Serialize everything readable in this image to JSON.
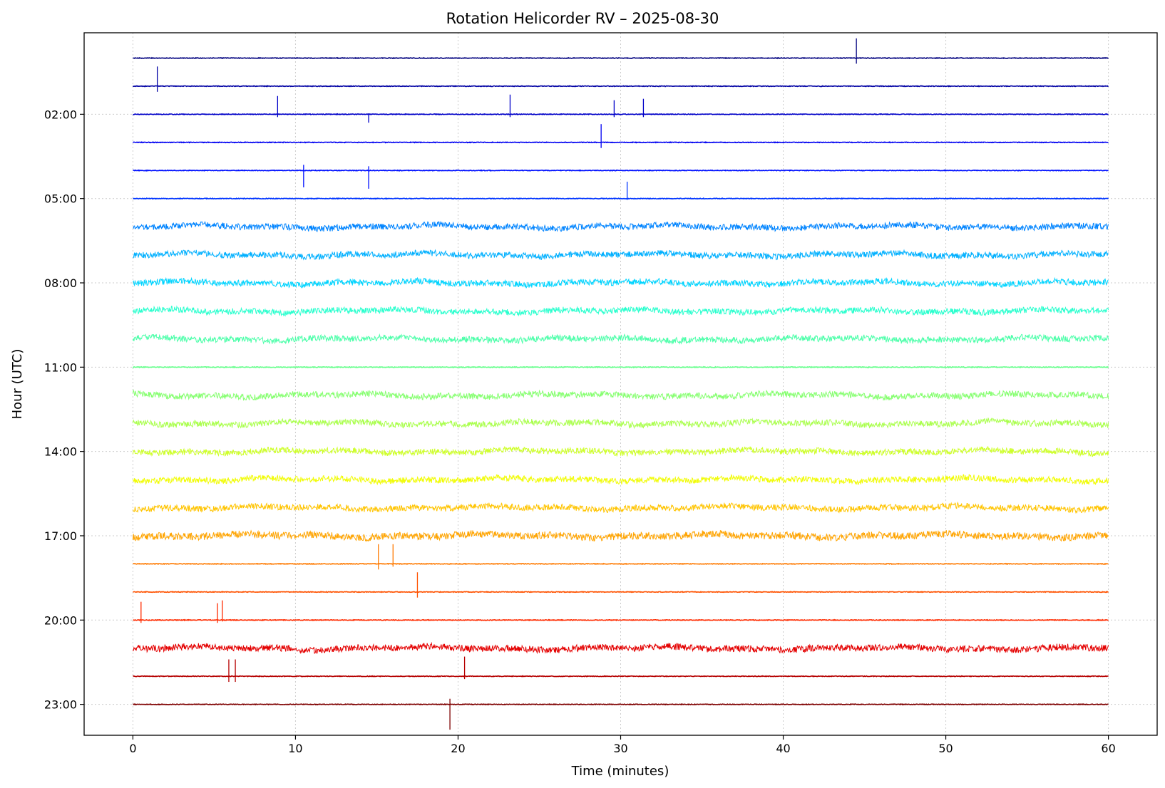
{
  "chart_data": {
    "type": "line",
    "title": "Rotation Helicorder RV – 2025-08-30",
    "xlabel": "Time (minutes)",
    "ylabel": "Hour (UTC)",
    "xlim": [
      -3,
      63
    ],
    "ylim": [
      24.1,
      -0.9
    ],
    "x_ticks": [
      0,
      10,
      20,
      30,
      40,
      50,
      60
    ],
    "x_tick_labels": [
      "0",
      "10",
      "20",
      "30",
      "40",
      "50",
      "60"
    ],
    "y_ticks": [
      2,
      5,
      8,
      11,
      14,
      17,
      20,
      23
    ],
    "y_tick_labels": [
      "02:00",
      "05:00",
      "08:00",
      "11:00",
      "14:00",
      "17:00",
      "20:00",
      "23:00"
    ],
    "grid": true,
    "colormap": "jet",
    "series": [
      {
        "hour": 0,
        "color": "#00007f",
        "noise": 0.012,
        "spikes": [
          {
            "t": 44.5,
            "up": 0.7,
            "down": 0.2
          }
        ]
      },
      {
        "hour": 1,
        "color": "#0000a4",
        "noise": 0.012,
        "spikes": [
          {
            "t": 1.5,
            "up": 0.7,
            "down": 0.2
          }
        ]
      },
      {
        "hour": 2,
        "color": "#0000c8",
        "noise": 0.012,
        "spikes": [
          {
            "t": 8.9,
            "up": 0.65,
            "down": 0.1
          },
          {
            "t": 14.5,
            "up": 0.0,
            "down": 0.3
          },
          {
            "t": 23.2,
            "up": 0.7,
            "down": 0.1
          },
          {
            "t": 29.6,
            "up": 0.5,
            "down": 0.1
          },
          {
            "t": 31.4,
            "up": 0.55,
            "down": 0.1
          }
        ]
      },
      {
        "hour": 3,
        "color": "#0000f1",
        "noise": 0.012,
        "spikes": [
          {
            "t": 28.8,
            "up": 0.65,
            "down": 0.2
          }
        ]
      },
      {
        "hour": 4,
        "color": "#0010ff",
        "noise": 0.012,
        "spikes": [
          {
            "t": 10.5,
            "up": 0.2,
            "down": 0.6
          },
          {
            "t": 14.5,
            "up": 0.15,
            "down": 0.65
          }
        ]
      },
      {
        "hour": 5,
        "color": "#0034ff",
        "noise": 0.012,
        "spikes": [
          {
            "t": 30.4,
            "up": 0.6,
            "down": 0.05
          }
        ]
      },
      {
        "hour": 6,
        "color": "#0084ff",
        "noise": 0.11,
        "spikes": []
      },
      {
        "hour": 7,
        "color": "#00b0ff",
        "noise": 0.11,
        "spikes": []
      },
      {
        "hour": 8,
        "color": "#00d4ff",
        "noise": 0.11,
        "spikes": []
      },
      {
        "hour": 9,
        "color": "#29ffce",
        "noise": 0.11,
        "spikes": []
      },
      {
        "hour": 10,
        "color": "#4dffaa",
        "noise": 0.11,
        "spikes": []
      },
      {
        "hour": 11,
        "color": "#69ff8e",
        "noise": 0.014,
        "spikes": []
      },
      {
        "hour": 12,
        "color": "#86ff70",
        "noise": 0.11,
        "spikes": []
      },
      {
        "hour": 13,
        "color": "#aaff4d",
        "noise": 0.11,
        "spikes": []
      },
      {
        "hour": 14,
        "color": "#ceff29",
        "noise": 0.11,
        "spikes": []
      },
      {
        "hour": 15,
        "color": "#f1fc06",
        "noise": 0.11,
        "spikes": []
      },
      {
        "hour": 16,
        "color": "#ffc400",
        "noise": 0.11,
        "spikes": []
      },
      {
        "hour": 17,
        "color": "#ffa400",
        "noise": 0.13,
        "spikes": []
      },
      {
        "hour": 18,
        "color": "#ff7a00",
        "noise": 0.012,
        "spikes": [
          {
            "t": 15.1,
            "up": 0.7,
            "down": 0.2
          },
          {
            "t": 16.0,
            "up": 0.7,
            "down": 0.1
          }
        ]
      },
      {
        "hour": 19,
        "color": "#ff5200",
        "noise": 0.012,
        "spikes": [
          {
            "t": 17.5,
            "up": 0.7,
            "down": 0.2
          }
        ]
      },
      {
        "hour": 20,
        "color": "#ff2b00",
        "noise": 0.012,
        "spikes": [
          {
            "t": 0.5,
            "up": 0.65,
            "down": 0.1
          },
          {
            "t": 5.2,
            "up": 0.6,
            "down": 0.1
          },
          {
            "t": 5.5,
            "up": 0.7,
            "down": 0.05
          }
        ]
      },
      {
        "hour": 21,
        "color": "#e40000",
        "noise": 0.12,
        "spikes": []
      },
      {
        "hour": 22,
        "color": "#b60000",
        "noise": 0.012,
        "spikes": [
          {
            "t": 5.9,
            "up": 0.6,
            "down": 0.2
          },
          {
            "t": 6.3,
            "up": 0.6,
            "down": 0.2
          },
          {
            "t": 20.4,
            "up": 0.7,
            "down": 0.1
          }
        ]
      },
      {
        "hour": 23,
        "color": "#7f0000",
        "noise": 0.012,
        "spikes": [
          {
            "t": 19.5,
            "up": 0.2,
            "down": 0.9
          }
        ]
      }
    ]
  }
}
